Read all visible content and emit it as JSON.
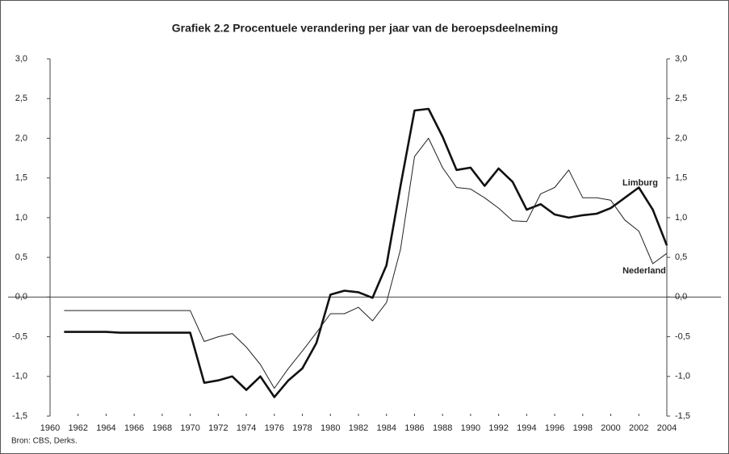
{
  "chart_data": {
    "type": "line",
    "title": "Grafiek 2.2 Procentuele verandering per jaar van de beroepsdeelneming",
    "source": "Bron: CBS, Derks.",
    "x": [
      1961,
      1962,
      1963,
      1964,
      1965,
      1966,
      1967,
      1968,
      1969,
      1970,
      1971,
      1972,
      1973,
      1974,
      1975,
      1976,
      1977,
      1978,
      1979,
      1980,
      1981,
      1982,
      1983,
      1984,
      1985,
      1986,
      1987,
      1988,
      1989,
      1990,
      1991,
      1992,
      1993,
      1994,
      1995,
      1996,
      1997,
      1998,
      1999,
      2000,
      2001,
      2002,
      2003,
      2004
    ],
    "series": [
      {
        "name": "Limburg",
        "color": "#111111",
        "width": 2.6,
        "values": [
          -0.44,
          -0.44,
          -0.44,
          -0.44,
          -0.45,
          -0.45,
          -0.45,
          -0.45,
          -0.45,
          -0.45,
          -1.08,
          -1.05,
          -1.0,
          -1.17,
          -1.0,
          -1.26,
          -1.05,
          -0.9,
          -0.58,
          0.03,
          0.08,
          0.06,
          -0.01,
          0.4,
          1.4,
          2.35,
          2.37,
          2.02,
          1.6,
          1.63,
          1.4,
          1.62,
          1.45,
          1.1,
          1.17,
          1.04,
          1.0,
          1.03,
          1.05,
          1.12,
          1.25,
          1.38,
          1.1,
          0.65
        ]
      },
      {
        "name": "Nederland",
        "color": "#222222",
        "width": 1,
        "values": [
          -0.17,
          -0.17,
          -0.17,
          -0.17,
          -0.17,
          -0.17,
          -0.17,
          -0.17,
          -0.17,
          -0.17,
          -0.56,
          -0.5,
          -0.46,
          -0.63,
          -0.85,
          -1.15,
          -0.9,
          -0.68,
          -0.45,
          -0.21,
          -0.21,
          -0.13,
          -0.3,
          -0.07,
          0.6,
          1.77,
          2.0,
          1.63,
          1.38,
          1.36,
          1.25,
          1.12,
          0.96,
          0.95,
          1.3,
          1.38,
          1.6,
          1.25,
          1.25,
          1.22,
          0.97,
          0.83,
          0.42,
          0.55
        ]
      }
    ],
    "xlim": [
      1960,
      2004
    ],
    "xticks": [
      1960,
      1962,
      1964,
      1966,
      1968,
      1970,
      1972,
      1974,
      1976,
      1978,
      1980,
      1982,
      1984,
      1986,
      1988,
      1990,
      1992,
      1994,
      1996,
      1998,
      2000,
      2002,
      2004
    ],
    "ylim": [
      -1.5,
      3.0
    ],
    "yticks": [
      {
        "value": -1.5,
        "label": "-1,5"
      },
      {
        "value": -1.0,
        "label": "-1,0"
      },
      {
        "value": -0.5,
        "label": "-0,5"
      },
      {
        "value": 0,
        "label": "0,0"
      },
      {
        "value": 0.5,
        "label": "0,5"
      },
      {
        "value": 1.0,
        "label": "1,0"
      },
      {
        "value": 1.5,
        "label": "1,5"
      },
      {
        "value": 2.0,
        "label": "2,0"
      },
      {
        "value": 2.5,
        "label": "2,5"
      },
      {
        "value": 3.0,
        "label": "3,0"
      }
    ],
    "y2lim": [
      -1.5,
      3.0
    ],
    "y2ticks": [
      {
        "value": -1.5,
        "label": "-1,5"
      },
      {
        "value": -1.0,
        "label": "-1,0"
      },
      {
        "value": -0.5,
        "label": "-0,5"
      },
      {
        "value": 0,
        "label": "0,0"
      },
      {
        "value": 0.5,
        "label": "0,5"
      },
      {
        "value": 1.0,
        "label": "1,0"
      },
      {
        "value": 1.5,
        "label": "1,5"
      },
      {
        "value": 2.0,
        "label": "2,0"
      },
      {
        "value": 2.5,
        "label": "2,5"
      },
      {
        "value": 3.0,
        "label": "3,0"
      }
    ],
    "grid": false
  }
}
